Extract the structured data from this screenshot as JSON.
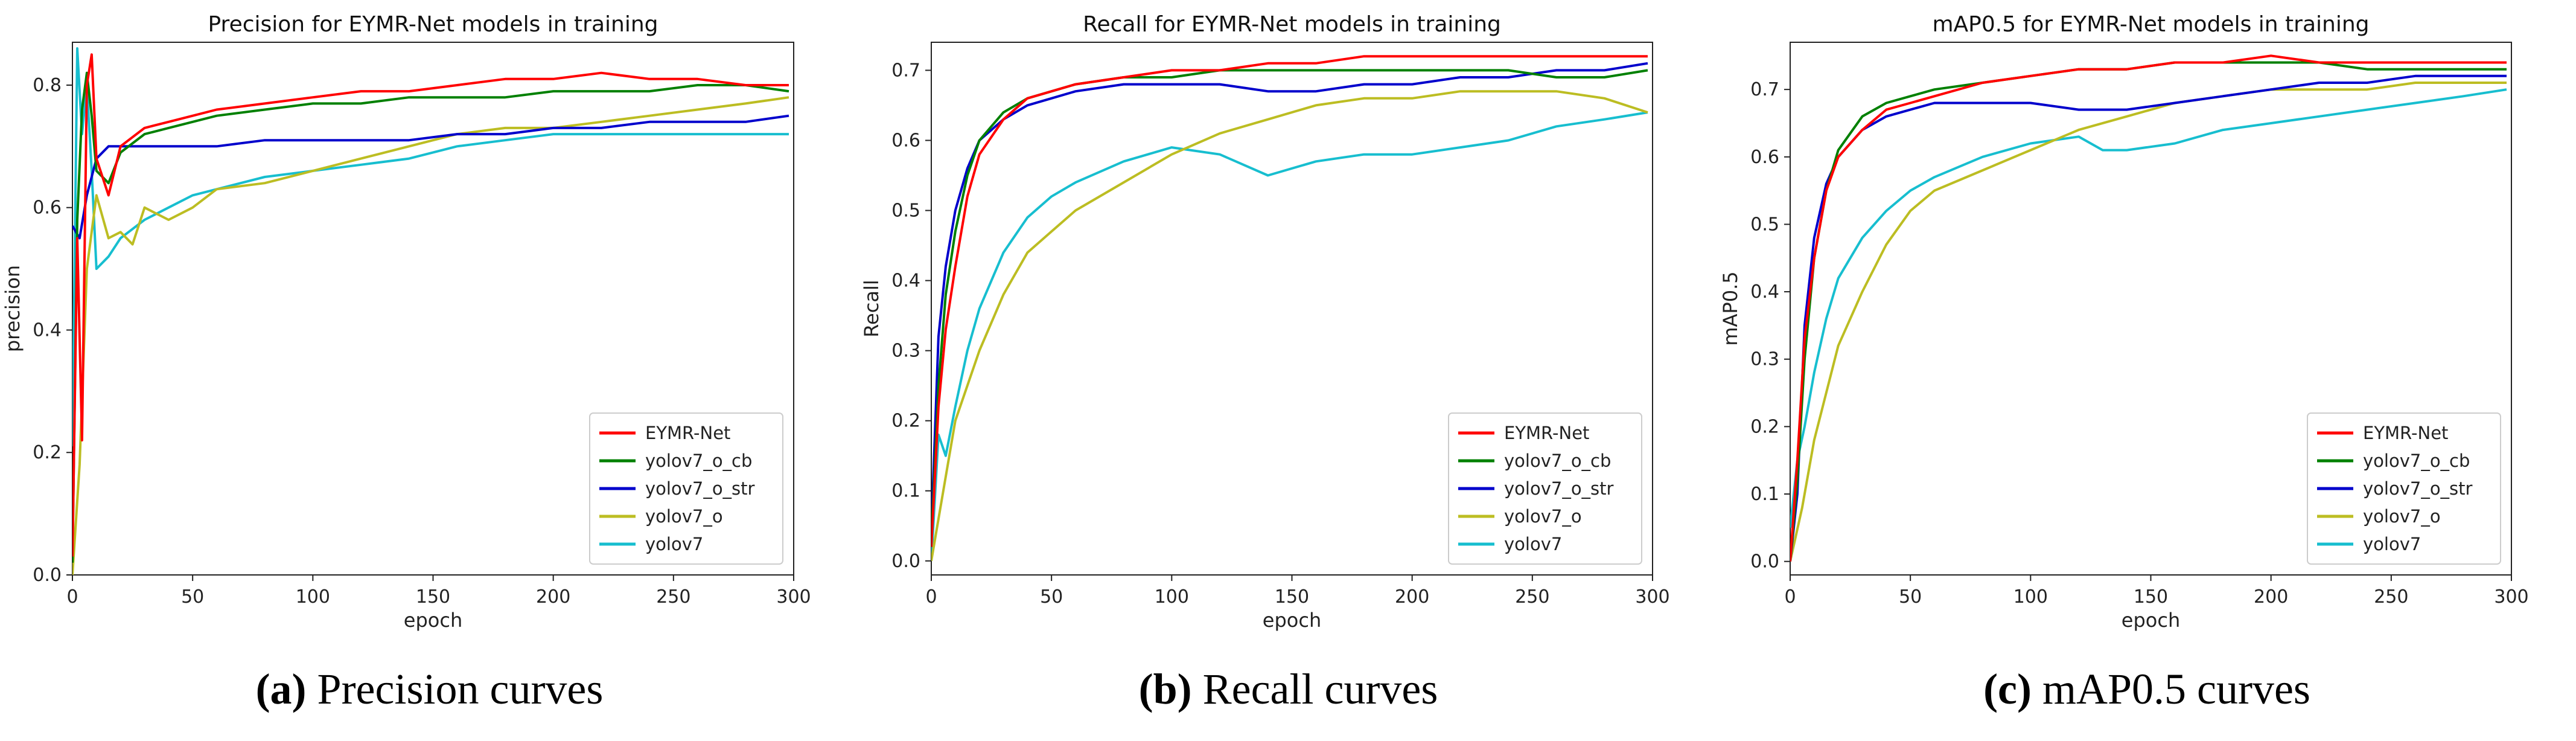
{
  "chart_data": [
    {
      "type": "line",
      "panel": "a",
      "title": "Precision for EYMR-Net models in training",
      "xlabel": "epoch",
      "ylabel": "precision",
      "xlim": [
        0,
        300
      ],
      "ylim": [
        0.0,
        0.87
      ],
      "xticks": [
        "0",
        "50",
        "100",
        "150",
        "200",
        "250",
        "300"
      ],
      "yticks": [
        "0.0",
        "0.2",
        "0.4",
        "0.6",
        "0.8"
      ],
      "legend_position": "lower-right",
      "caption_letter": "(a)",
      "caption_text": " Precision curves",
      "series": [
        {
          "name": "EYMR-Net",
          "color": "#ff0000",
          "x": [
            0,
            2,
            4,
            6,
            8,
            10,
            15,
            20,
            30,
            40,
            50,
            60,
            80,
            100,
            120,
            140,
            160,
            180,
            200,
            220,
            240,
            260,
            280,
            298
          ],
          "y": [
            0.03,
            0.55,
            0.22,
            0.8,
            0.85,
            0.68,
            0.62,
            0.7,
            0.73,
            0.74,
            0.75,
            0.76,
            0.77,
            0.78,
            0.79,
            0.79,
            0.8,
            0.81,
            0.81,
            0.82,
            0.81,
            0.81,
            0.8,
            0.8
          ]
        },
        {
          "name": "yolov7_o_cb",
          "color": "#008000",
          "x": [
            0,
            2,
            4,
            6,
            8,
            10,
            15,
            20,
            30,
            40,
            50,
            60,
            80,
            100,
            120,
            140,
            160,
            180,
            200,
            220,
            240,
            260,
            280,
            298
          ],
          "y": [
            0.02,
            0.58,
            0.76,
            0.82,
            0.75,
            0.66,
            0.64,
            0.69,
            0.72,
            0.73,
            0.74,
            0.75,
            0.76,
            0.77,
            0.77,
            0.78,
            0.78,
            0.78,
            0.79,
            0.79,
            0.79,
            0.8,
            0.8,
            0.79
          ]
        },
        {
          "name": "yolov7_o_str",
          "color": "#0000cc",
          "x": [
            0,
            3,
            6,
            10,
            15,
            20,
            30,
            40,
            60,
            80,
            100,
            120,
            140,
            160,
            180,
            200,
            220,
            240,
            260,
            280,
            298
          ],
          "y": [
            0.57,
            0.55,
            0.62,
            0.68,
            0.7,
            0.7,
            0.7,
            0.7,
            0.7,
            0.71,
            0.71,
            0.71,
            0.71,
            0.72,
            0.72,
            0.73,
            0.73,
            0.74,
            0.74,
            0.74,
            0.75
          ]
        },
        {
          "name": "yolov7_o",
          "color": "#bcbd22",
          "x": [
            0,
            3,
            6,
            10,
            15,
            20,
            25,
            30,
            40,
            50,
            60,
            80,
            100,
            120,
            140,
            160,
            180,
            200,
            220,
            240,
            260,
            280,
            298
          ],
          "y": [
            0.0,
            0.18,
            0.5,
            0.62,
            0.55,
            0.56,
            0.54,
            0.6,
            0.58,
            0.6,
            0.63,
            0.64,
            0.66,
            0.68,
            0.7,
            0.72,
            0.73,
            0.73,
            0.74,
            0.75,
            0.76,
            0.77,
            0.78
          ]
        },
        {
          "name": "yolov7",
          "color": "#17becf",
          "x": [
            0,
            2,
            4,
            6,
            8,
            10,
            15,
            20,
            30,
            40,
            50,
            60,
            80,
            100,
            120,
            140,
            160,
            180,
            200,
            220,
            240,
            260,
            280,
            298
          ],
          "y": [
            0.21,
            0.86,
            0.72,
            0.8,
            0.66,
            0.5,
            0.52,
            0.55,
            0.58,
            0.6,
            0.62,
            0.63,
            0.65,
            0.66,
            0.67,
            0.68,
            0.7,
            0.71,
            0.72,
            0.72,
            0.72,
            0.72,
            0.72,
            0.72
          ]
        }
      ]
    },
    {
      "type": "line",
      "panel": "b",
      "title": "Recall for EYMR-Net models in training",
      "xlabel": "epoch",
      "ylabel": "Recall",
      "xlim": [
        0,
        300
      ],
      "ylim": [
        -0.02,
        0.74
      ],
      "xticks": [
        "0",
        "50",
        "100",
        "150",
        "200",
        "250",
        "300"
      ],
      "yticks": [
        "0.0",
        "0.1",
        "0.2",
        "0.3",
        "0.4",
        "0.5",
        "0.6",
        "0.7"
      ],
      "legend_position": "lower-right",
      "caption_letter": "(b)",
      "caption_text": " Recall curves",
      "series": [
        {
          "name": "EYMR-Net",
          "color": "#ff0000",
          "x": [
            0,
            3,
            6,
            10,
            15,
            20,
            30,
            40,
            50,
            60,
            80,
            100,
            120,
            140,
            160,
            180,
            200,
            220,
            240,
            260,
            280,
            298
          ],
          "y": [
            0.02,
            0.22,
            0.33,
            0.42,
            0.52,
            0.58,
            0.63,
            0.66,
            0.67,
            0.68,
            0.69,
            0.7,
            0.7,
            0.71,
            0.71,
            0.72,
            0.72,
            0.72,
            0.72,
            0.72,
            0.72,
            0.72
          ]
        },
        {
          "name": "yolov7_o_cb",
          "color": "#008000",
          "x": [
            0,
            3,
            6,
            10,
            15,
            20,
            30,
            40,
            50,
            60,
            80,
            100,
            120,
            140,
            160,
            180,
            200,
            220,
            240,
            260,
            280,
            298
          ],
          "y": [
            0.03,
            0.25,
            0.38,
            0.47,
            0.55,
            0.6,
            0.64,
            0.66,
            0.67,
            0.68,
            0.69,
            0.69,
            0.7,
            0.7,
            0.7,
            0.7,
            0.7,
            0.7,
            0.7,
            0.69,
            0.69,
            0.7
          ]
        },
        {
          "name": "yolov7_o_str",
          "color": "#0000cc",
          "x": [
            0,
            3,
            6,
            10,
            15,
            20,
            30,
            40,
            50,
            60,
            80,
            100,
            120,
            140,
            160,
            180,
            200,
            220,
            240,
            260,
            280,
            298
          ],
          "y": [
            0.04,
            0.32,
            0.42,
            0.5,
            0.56,
            0.6,
            0.63,
            0.65,
            0.66,
            0.67,
            0.68,
            0.68,
            0.68,
            0.67,
            0.67,
            0.68,
            0.68,
            0.69,
            0.69,
            0.7,
            0.7,
            0.71
          ]
        },
        {
          "name": "yolov7_o",
          "color": "#bcbd22",
          "x": [
            0,
            5,
            10,
            20,
            30,
            40,
            50,
            60,
            80,
            100,
            120,
            140,
            160,
            180,
            200,
            220,
            240,
            260,
            280,
            298
          ],
          "y": [
            0.0,
            0.1,
            0.2,
            0.3,
            0.38,
            0.44,
            0.47,
            0.5,
            0.54,
            0.58,
            0.61,
            0.63,
            0.65,
            0.66,
            0.66,
            0.67,
            0.67,
            0.67,
            0.66,
            0.64
          ]
        },
        {
          "name": "yolov7",
          "color": "#17becf",
          "x": [
            0,
            3,
            6,
            10,
            15,
            20,
            30,
            40,
            50,
            60,
            80,
            100,
            120,
            140,
            160,
            180,
            200,
            220,
            240,
            260,
            280,
            298
          ],
          "y": [
            0.0,
            0.18,
            0.15,
            0.22,
            0.3,
            0.36,
            0.44,
            0.49,
            0.52,
            0.54,
            0.57,
            0.59,
            0.58,
            0.55,
            0.57,
            0.58,
            0.58,
            0.59,
            0.6,
            0.62,
            0.63,
            0.64
          ]
        }
      ]
    },
    {
      "type": "line",
      "panel": "c",
      "title": "mAP0.5 for EYMR-Net models in training",
      "xlabel": "epoch",
      "ylabel": "mAP0.5",
      "xlim": [
        0,
        300
      ],
      "ylim": [
        -0.02,
        0.77
      ],
      "xticks": [
        "0",
        "50",
        "100",
        "150",
        "200",
        "250",
        "300"
      ],
      "yticks": [
        "0.0",
        "0.1",
        "0.2",
        "0.3",
        "0.4",
        "0.5",
        "0.6",
        "0.7"
      ],
      "legend_position": "lower-right",
      "caption_letter": "(c)",
      "caption_text": " mAP0.5 curves",
      "series": [
        {
          "name": "EYMR-Net",
          "color": "#ff0000",
          "x": [
            0,
            3,
            6,
            10,
            15,
            20,
            30,
            40,
            50,
            60,
            80,
            100,
            120,
            140,
            160,
            180,
            200,
            220,
            240,
            260,
            280,
            298
          ],
          "y": [
            0.0,
            0.15,
            0.33,
            0.45,
            0.55,
            0.6,
            0.64,
            0.67,
            0.68,
            0.69,
            0.71,
            0.72,
            0.73,
            0.73,
            0.74,
            0.74,
            0.75,
            0.74,
            0.74,
            0.74,
            0.74,
            0.74
          ]
        },
        {
          "name": "yolov7_o_cb",
          "color": "#008000",
          "x": [
            0,
            3,
            6,
            10,
            15,
            20,
            30,
            40,
            50,
            60,
            80,
            100,
            120,
            140,
            160,
            180,
            200,
            220,
            240,
            260,
            280,
            298
          ],
          "y": [
            0.0,
            0.12,
            0.3,
            0.45,
            0.55,
            0.61,
            0.66,
            0.68,
            0.69,
            0.7,
            0.71,
            0.72,
            0.73,
            0.73,
            0.74,
            0.74,
            0.74,
            0.74,
            0.73,
            0.73,
            0.73,
            0.73
          ]
        },
        {
          "name": "yolov7_o_str",
          "color": "#0000cc",
          "x": [
            0,
            3,
            6,
            10,
            15,
            20,
            30,
            40,
            50,
            60,
            80,
            100,
            120,
            140,
            160,
            180,
            200,
            220,
            240,
            260,
            280,
            298
          ],
          "y": [
            0.0,
            0.1,
            0.35,
            0.48,
            0.56,
            0.6,
            0.64,
            0.66,
            0.67,
            0.68,
            0.68,
            0.68,
            0.67,
            0.67,
            0.68,
            0.69,
            0.7,
            0.71,
            0.71,
            0.72,
            0.72,
            0.72
          ]
        },
        {
          "name": "yolov7_o",
          "color": "#bcbd22",
          "x": [
            0,
            5,
            10,
            20,
            30,
            40,
            50,
            60,
            80,
            100,
            120,
            140,
            160,
            180,
            200,
            220,
            240,
            260,
            280,
            298
          ],
          "y": [
            0.0,
            0.08,
            0.18,
            0.32,
            0.4,
            0.47,
            0.52,
            0.55,
            0.58,
            0.61,
            0.64,
            0.66,
            0.68,
            0.69,
            0.7,
            0.7,
            0.7,
            0.71,
            0.71,
            0.71
          ]
        },
        {
          "name": "yolov7",
          "color": "#17becf",
          "x": [
            0,
            3,
            6,
            10,
            15,
            20,
            30,
            40,
            50,
            60,
            80,
            100,
            120,
            130,
            140,
            160,
            180,
            200,
            220,
            240,
            260,
            280,
            298
          ],
          "y": [
            0.05,
            0.15,
            0.2,
            0.28,
            0.36,
            0.42,
            0.48,
            0.52,
            0.55,
            0.57,
            0.6,
            0.62,
            0.63,
            0.61,
            0.61,
            0.62,
            0.64,
            0.65,
            0.66,
            0.67,
            0.68,
            0.69,
            0.7
          ]
        }
      ]
    }
  ]
}
